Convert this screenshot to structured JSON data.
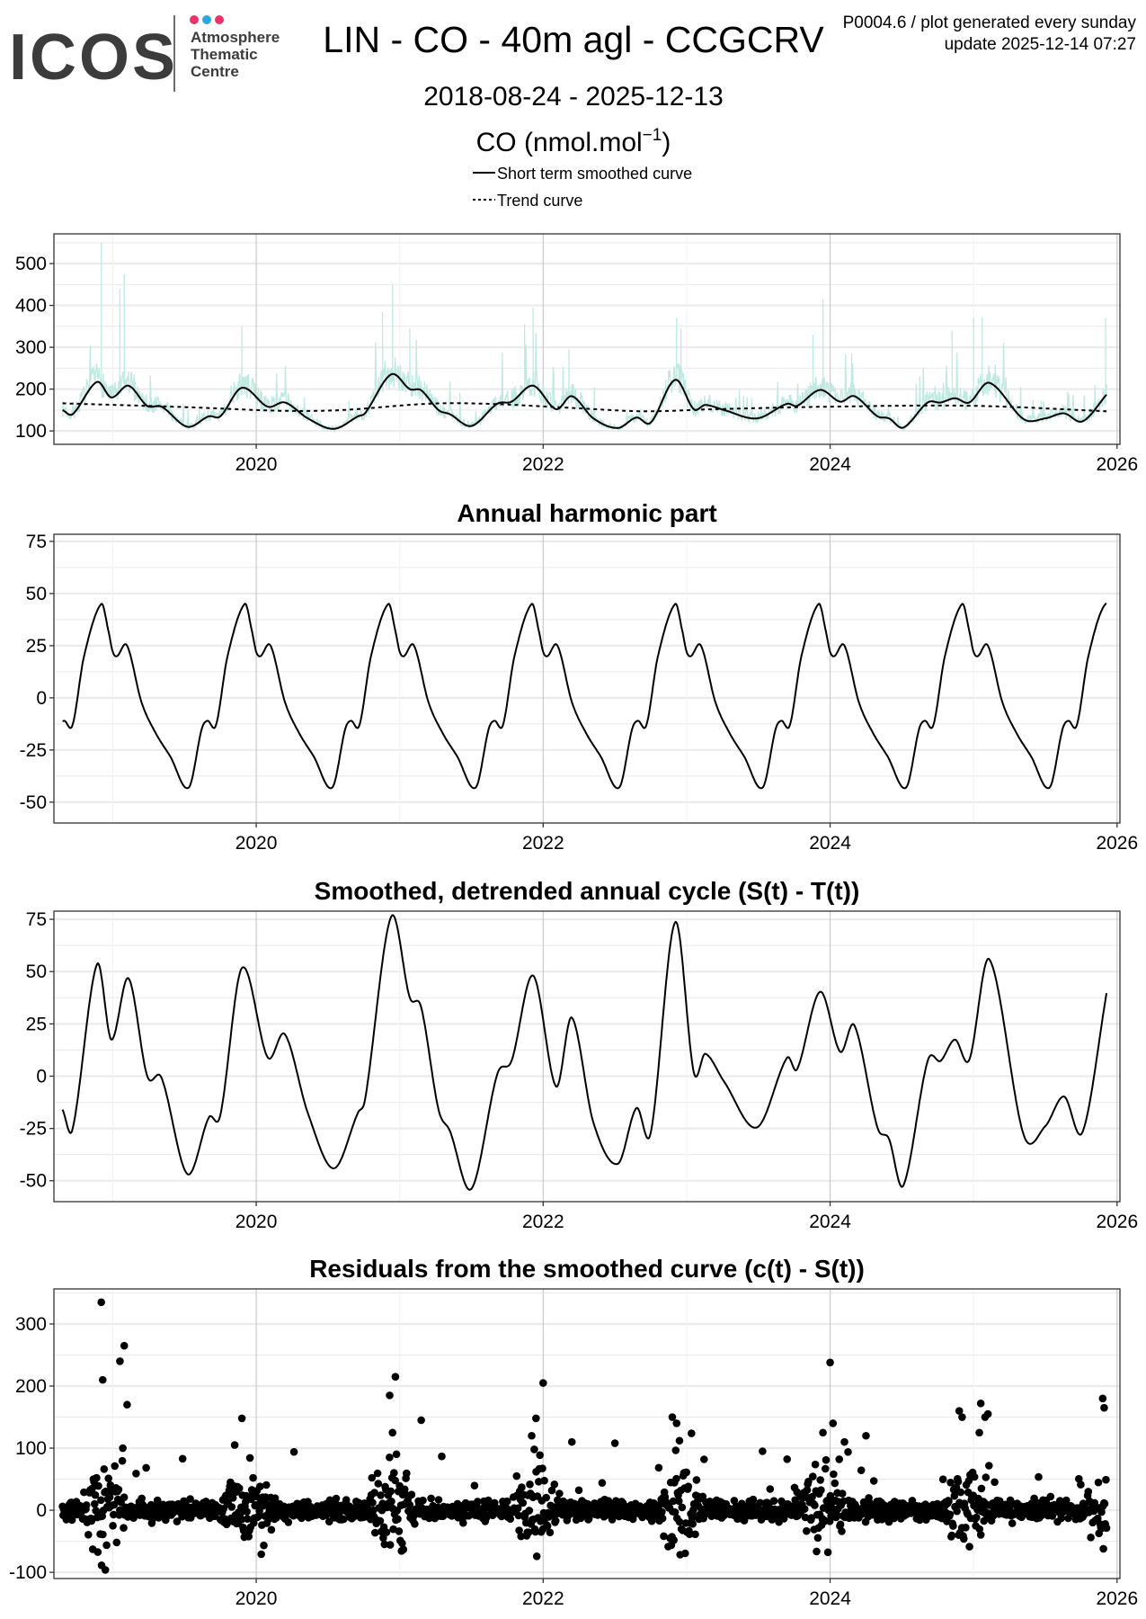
{
  "header": {
    "logo_text": "ICOS",
    "logo_sub": [
      "Atmosphere",
      "Thematic",
      "Centre"
    ],
    "logo_dot_colors": [
      "#e8336b",
      "#2aa7e0",
      "#e8336b"
    ],
    "title": "LIN - CO - 40m agl - CCGCRV",
    "meta_line1": "P0004.6 / plot generated every sunday",
    "meta_line2": "update  2025-12-14 07:27",
    "date_range": "2018-08-24 - 2025-12-13",
    "unit_main": "CO (nmol.mol",
    "unit_sup": "−1",
    "unit_close": ")"
  },
  "legend": {
    "smoothed": "Short term smoothed curve",
    "trend": "Trend curve"
  },
  "colors": {
    "raw": "#bfe9e1",
    "line": "#000000",
    "grid": "#ebebeb",
    "vgrid": "#c9c9c9"
  },
  "chart_data": [
    {
      "type": "line",
      "title": "",
      "xlabel": "",
      "ylabel": "CO (nmol.mol-1)",
      "xticks": [
        "2020",
        "2022",
        "2024",
        "2026"
      ],
      "yticks": [
        "100",
        "200",
        "300",
        "400",
        "500"
      ],
      "xlim": [
        2018.59,
        2026.02
      ],
      "ylim": [
        68,
        571
      ],
      "raw_spikes": [
        [
          2018.92,
          550
        ],
        [
          2019.05,
          440
        ],
        [
          2019.08,
          475
        ],
        [
          2019.9,
          350
        ],
        [
          2020.95,
          450
        ],
        [
          2020.88,
          385
        ],
        [
          2021.07,
          345
        ],
        [
          2021.93,
          395
        ],
        [
          2021.87,
          355
        ],
        [
          2022.18,
          295
        ],
        [
          2022.93,
          370
        ],
        [
          2022.96,
          345
        ],
        [
          2023.95,
          415
        ],
        [
          2023.88,
          330
        ],
        [
          2024.15,
          285
        ],
        [
          2024.85,
          340
        ],
        [
          2025.0,
          370
        ],
        [
          2025.06,
          372
        ],
        [
          2025.92,
          370
        ]
      ],
      "series": [
        {
          "name": "Short term smoothed curve",
          "points": [
            [
              2018.65,
              150
            ],
            [
              2018.72,
              140
            ],
            [
              2018.89,
              217
            ],
            [
              2018.99,
              180
            ],
            [
              2019.11,
              208
            ],
            [
              2019.24,
              160
            ],
            [
              2019.34,
              158
            ],
            [
              2019.52,
              110
            ],
            [
              2019.67,
              135
            ],
            [
              2019.75,
              135
            ],
            [
              2019.9,
              203
            ],
            [
              2020.08,
              158
            ],
            [
              2020.2,
              168
            ],
            [
              2020.36,
              130
            ],
            [
              2020.54,
              105
            ],
            [
              2020.71,
              135
            ],
            [
              2020.76,
              143
            ],
            [
              2020.94,
              235
            ],
            [
              2021.07,
              200
            ],
            [
              2021.15,
              197
            ],
            [
              2021.27,
              150
            ],
            [
              2021.35,
              140
            ],
            [
              2021.5,
              112
            ],
            [
              2021.68,
              165
            ],
            [
              2021.78,
              170
            ],
            [
              2021.93,
              208
            ],
            [
              2022.09,
              152
            ],
            [
              2022.2,
              183
            ],
            [
              2022.35,
              130
            ],
            [
              2022.52,
              107
            ],
            [
              2022.65,
              132
            ],
            [
              2022.75,
              120
            ],
            [
              2022.92,
              222
            ],
            [
              2023.05,
              152
            ],
            [
              2023.13,
              162
            ],
            [
              2023.26,
              150
            ],
            [
              2023.49,
              130
            ],
            [
              2023.7,
              165
            ],
            [
              2023.77,
              160
            ],
            [
              2023.93,
              198
            ],
            [
              2024.07,
              170
            ],
            [
              2024.17,
              183
            ],
            [
              2024.33,
              135
            ],
            [
              2024.41,
              130
            ],
            [
              2024.51,
              108
            ],
            [
              2024.68,
              168
            ],
            [
              2024.77,
              168
            ],
            [
              2024.87,
              178
            ],
            [
              2024.97,
              168
            ],
            [
              2025.11,
              215
            ],
            [
              2025.35,
              128
            ],
            [
              2025.5,
              130
            ],
            [
              2025.63,
              142
            ],
            [
              2025.76,
              123
            ],
            [
              2025.93,
              188
            ]
          ]
        },
        {
          "name": "Trend curve",
          "points": [
            [
              2018.65,
              166
            ],
            [
              2019.5,
              157
            ],
            [
              2020.2,
              148
            ],
            [
              2020.6,
              150
            ],
            [
              2021.2,
              165
            ],
            [
              2021.6,
              165
            ],
            [
              2022.2,
              155
            ],
            [
              2022.7,
              147
            ],
            [
              2023.2,
              152
            ],
            [
              2024.0,
              158
            ],
            [
              2025.0,
              160
            ],
            [
              2025.93,
              147
            ]
          ]
        }
      ]
    },
    {
      "type": "line",
      "title": "Annual harmonic part",
      "xticks": [
        "2020",
        "2022",
        "2024",
        "2026"
      ],
      "yticks": [
        "-50",
        "-25",
        "0",
        "25",
        "50",
        "75"
      ],
      "xlim": [
        2018.59,
        2026.02
      ],
      "ylim": [
        -60,
        78.4
      ],
      "period_years": 1,
      "one_cycle": [
        [
          0.0,
          22
        ],
        [
          0.03,
          20
        ],
        [
          0.1,
          25
        ],
        [
          0.2,
          -2
        ],
        [
          0.3,
          -17
        ],
        [
          0.4,
          -28
        ],
        [
          0.53,
          -43
        ],
        [
          0.62,
          -15
        ],
        [
          0.66,
          -11
        ],
        [
          0.72,
          -13
        ],
        [
          0.8,
          20
        ],
        [
          0.92,
          45
        ],
        [
          0.97,
          32
        ]
      ],
      "range": [
        2018.65,
        2025.93
      ]
    },
    {
      "type": "line",
      "title": "Smoothed, detrended annual cycle (S(t) - T(t))",
      "xticks": [
        "2020",
        "2022",
        "2024",
        "2026"
      ],
      "yticks": [
        "-50",
        "-25",
        "0",
        "25",
        "50",
        "75"
      ],
      "xlim": [
        2018.59,
        2026.02
      ],
      "ylim": [
        -60,
        78.9
      ],
      "derived_from": "smoothed minus trend"
    },
    {
      "type": "scatter",
      "title": "Residuals from the smoothed curve (c(t) - S(t))",
      "xticks": [
        "2020",
        "2022",
        "2024",
        "2026"
      ],
      "yticks": [
        "-100",
        "0",
        "100",
        "200",
        "300"
      ],
      "xlim": [
        2018.59,
        2026.02
      ],
      "ylim": [
        -110,
        356.5
      ],
      "outliers": [
        [
          2018.92,
          335
        ],
        [
          2018.93,
          210
        ],
        [
          2019.05,
          240
        ],
        [
          2019.08,
          265
        ],
        [
          2019.1,
          170
        ],
        [
          2019.07,
          100
        ],
        [
          2019.9,
          148
        ],
        [
          2019.85,
          105
        ],
        [
          2020.93,
          185
        ],
        [
          2020.97,
          215
        ],
        [
          2020.95,
          125
        ],
        [
          2021.15,
          145
        ],
        [
          2022.0,
          205
        ],
        [
          2021.95,
          148
        ],
        [
          2021.92,
          120
        ],
        [
          2022.2,
          110
        ],
        [
          2022.5,
          108
        ],
        [
          2022.9,
          150
        ],
        [
          2022.93,
          140
        ],
        [
          2022.95,
          112
        ],
        [
          2023.95,
          125
        ],
        [
          2024.0,
          238
        ],
        [
          2024.02,
          140
        ],
        [
          2024.1,
          110
        ],
        [
          2024.25,
          120
        ],
        [
          2024.9,
          160
        ],
        [
          2024.92,
          150
        ],
        [
          2025.05,
          172
        ],
        [
          2025.08,
          150
        ],
        [
          2025.1,
          155
        ],
        [
          2025.04,
          125
        ],
        [
          2025.9,
          180
        ],
        [
          2025.91,
          165
        ]
      ]
    }
  ]
}
